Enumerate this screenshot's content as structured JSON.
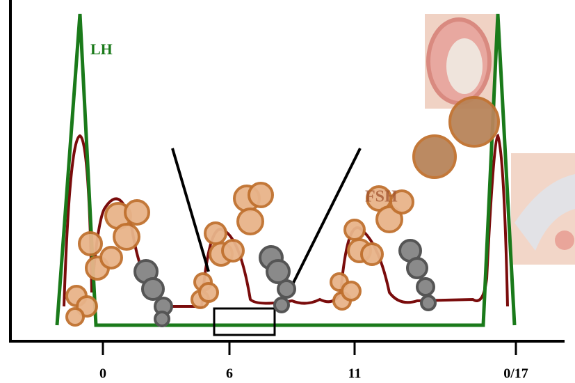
{
  "labels": {
    "lh": "LH",
    "fsh": "FSH"
  },
  "axis": {
    "ticks": [
      "0",
      "6",
      "11",
      "0/17"
    ]
  }
}
